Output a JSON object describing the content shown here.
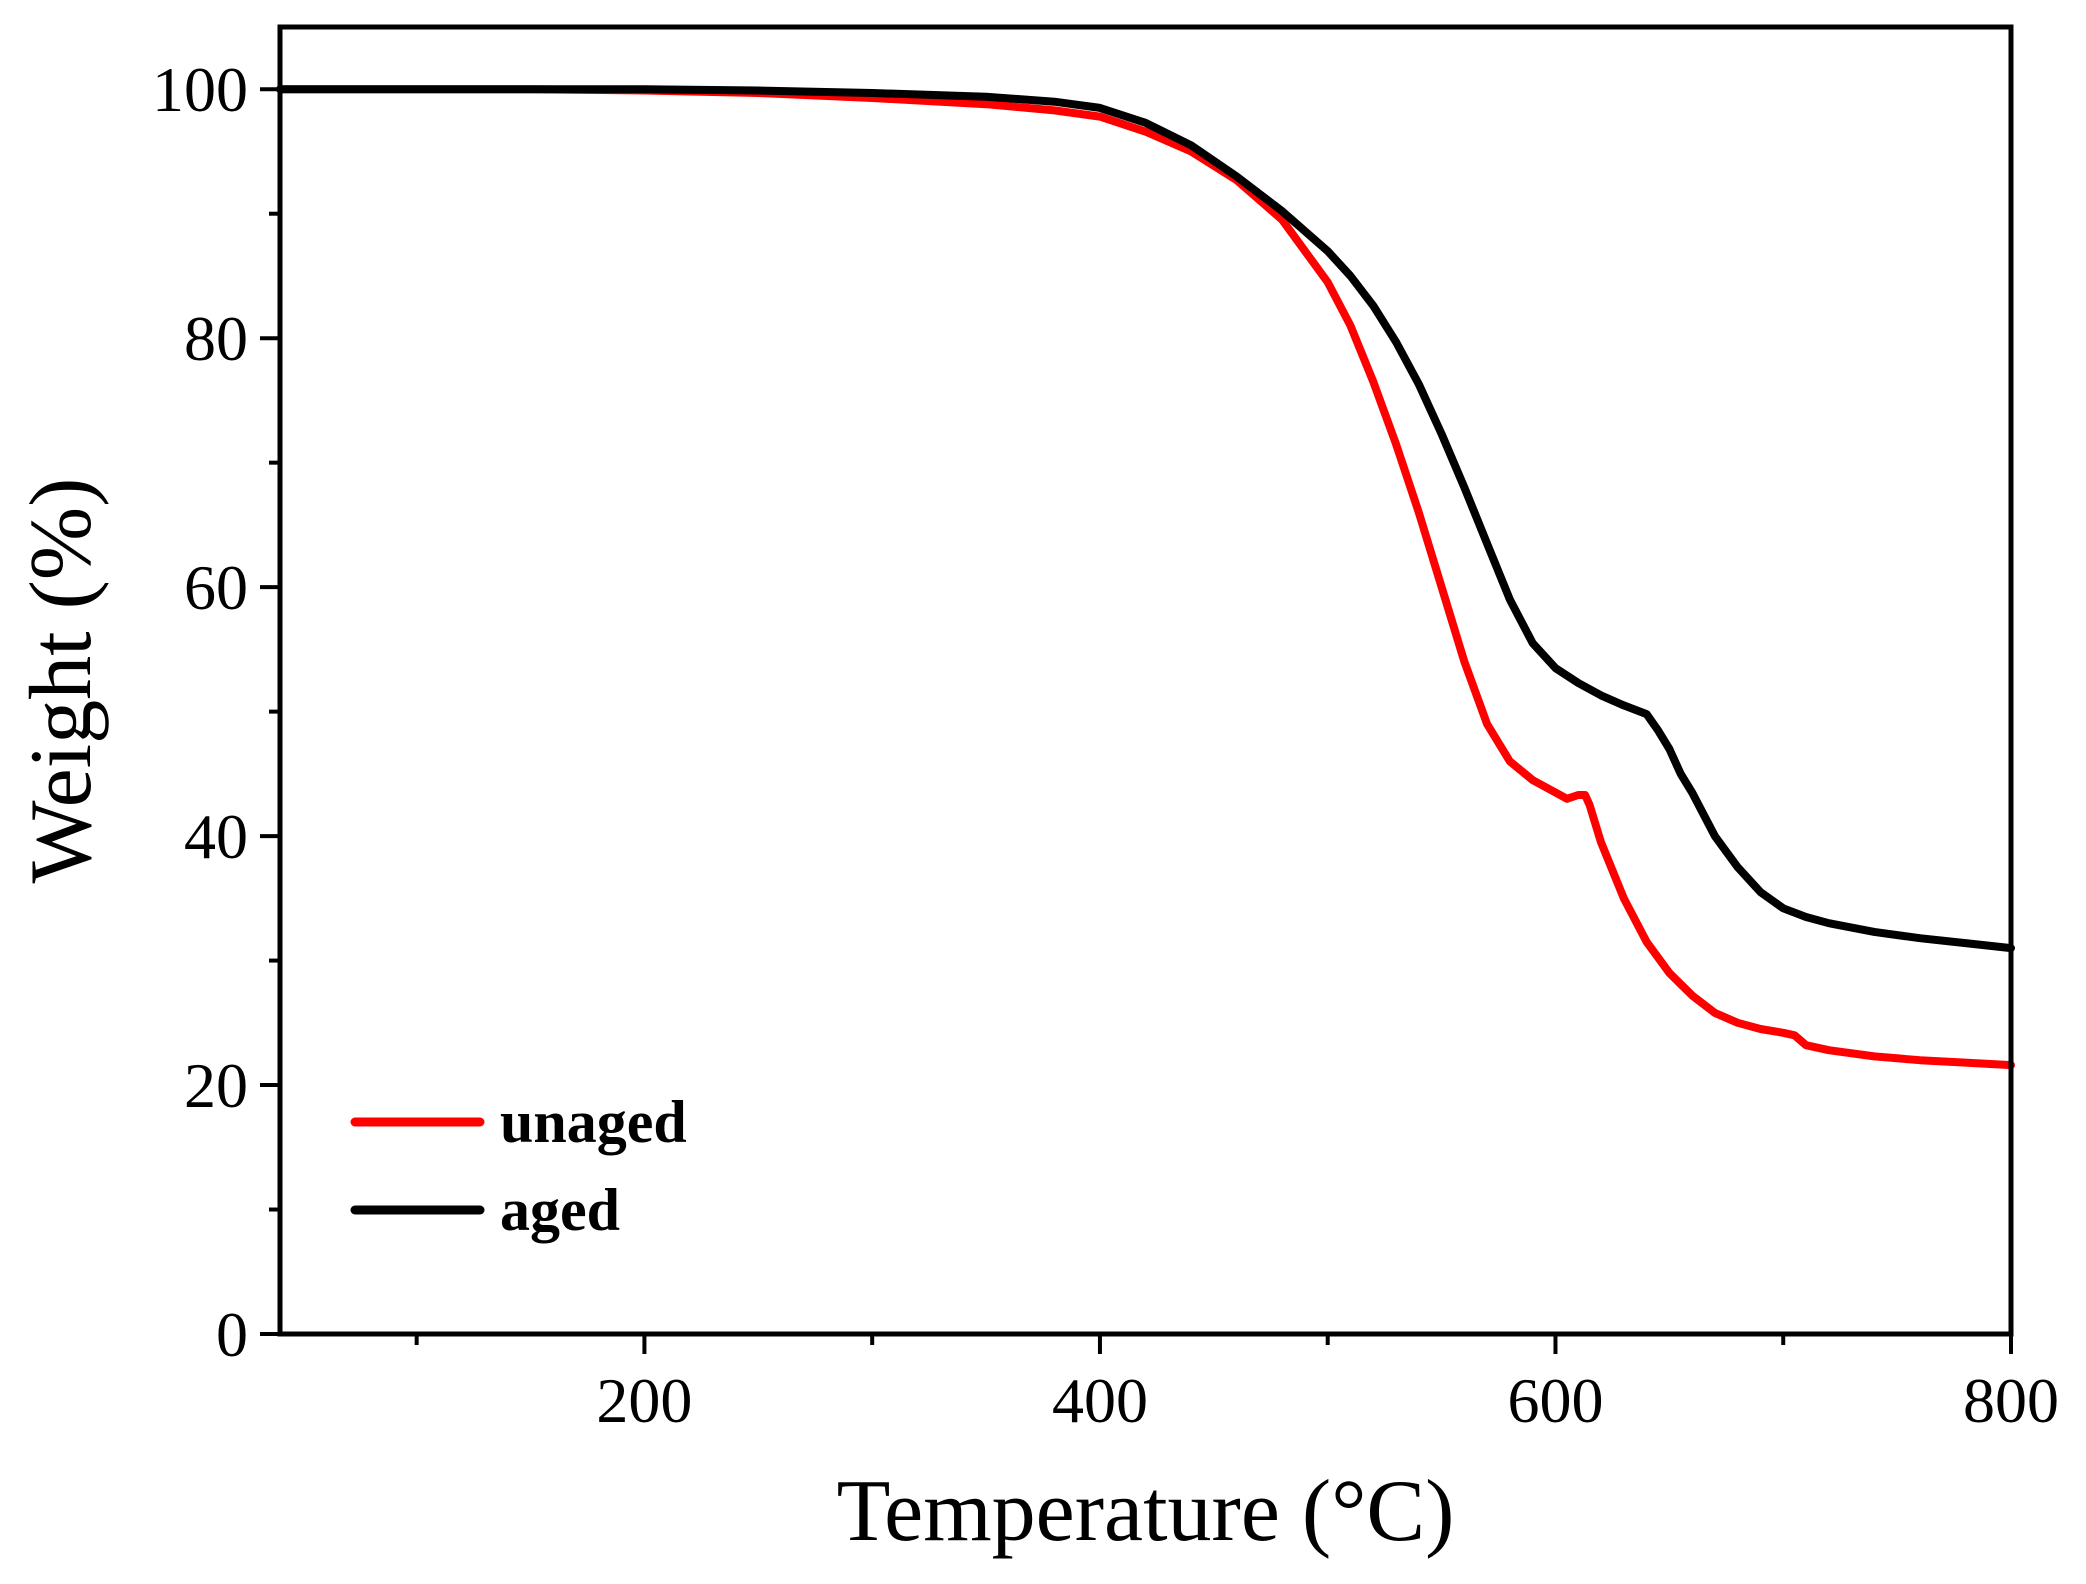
{
  "chart_data": {
    "type": "line",
    "title": "",
    "xlabel": "Temperature (°C)",
    "ylabel": "Weight (%)",
    "xlim": [
      40,
      800
    ],
    "ylim": [
      0,
      105
    ],
    "x_ticks": [
      200,
      400,
      600,
      800
    ],
    "x_minor_ticks": [
      100,
      300,
      500,
      700
    ],
    "y_ticks": [
      0,
      20,
      40,
      60,
      80,
      100
    ],
    "y_minor_ticks": [
      10,
      30,
      50,
      70,
      90
    ],
    "grid": false,
    "legend_position": "bottom-left",
    "series": [
      {
        "name": "unaged",
        "color": "#ff0000",
        "x": [
          40,
          100,
          150,
          200,
          250,
          300,
          350,
          380,
          400,
          420,
          440,
          460,
          480,
          500,
          510,
          520,
          530,
          540,
          550,
          560,
          570,
          580,
          590,
          600,
          605,
          610,
          613,
          615,
          620,
          630,
          640,
          650,
          660,
          670,
          680,
          690,
          700,
          705,
          710,
          720,
          740,
          760,
          780,
          800
        ],
        "y": [
          100,
          100,
          100,
          99.9,
          99.7,
          99.3,
          98.8,
          98.3,
          97.8,
          96.6,
          95.0,
          92.7,
          89.5,
          84.5,
          81.0,
          76.5,
          71.5,
          66.0,
          60.0,
          54.0,
          49.0,
          46.0,
          44.5,
          43.5,
          43.0,
          43.3,
          43.3,
          42.5,
          39.5,
          35.0,
          31.5,
          29.0,
          27.2,
          25.8,
          25.0,
          24.5,
          24.2,
          24.0,
          23.2,
          22.8,
          22.3,
          22.0,
          21.8,
          21.6
        ]
      },
      {
        "name": "aged",
        "color": "#000000",
        "x": [
          40,
          100,
          150,
          200,
          250,
          300,
          350,
          380,
          400,
          420,
          440,
          460,
          480,
          500,
          510,
          520,
          530,
          540,
          550,
          560,
          570,
          580,
          590,
          600,
          610,
          620,
          630,
          640,
          645,
          650,
          655,
          660,
          670,
          680,
          690,
          700,
          710,
          720,
          740,
          760,
          780,
          800
        ],
        "y": [
          100,
          100,
          100,
          100,
          99.9,
          99.7,
          99.4,
          99.0,
          98.5,
          97.3,
          95.5,
          93.0,
          90.2,
          87.0,
          85.0,
          82.6,
          79.7,
          76.3,
          72.3,
          68.0,
          63.5,
          59.0,
          55.5,
          53.5,
          52.3,
          51.3,
          50.5,
          49.8,
          48.5,
          47.0,
          45.0,
          43.5,
          40.0,
          37.5,
          35.5,
          34.2,
          33.5,
          33.0,
          32.3,
          31.8,
          31.4,
          31.0
        ]
      }
    ]
  }
}
